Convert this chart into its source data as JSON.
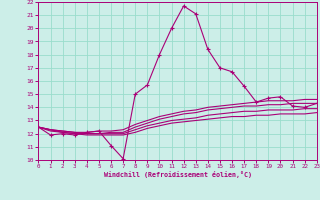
{
  "xlabel": "Windchill (Refroidissement éolien,°C)",
  "xlim": [
    0,
    23
  ],
  "ylim": [
    10,
    22
  ],
  "xticks": [
    0,
    1,
    2,
    3,
    4,
    5,
    6,
    7,
    8,
    9,
    10,
    11,
    12,
    13,
    14,
    15,
    16,
    17,
    18,
    19,
    20,
    21,
    22,
    23
  ],
  "yticks": [
    10,
    11,
    12,
    13,
    14,
    15,
    16,
    17,
    18,
    19,
    20,
    21,
    22
  ],
  "bg_color": "#cceee8",
  "grid_color": "#99ddcc",
  "line_color": "#aa0077",
  "line1_x": [
    0,
    1,
    2,
    3,
    4,
    5,
    6,
    7,
    8,
    9,
    10,
    11,
    12,
    13,
    14,
    15,
    16,
    17,
    18,
    19,
    20,
    21,
    22,
    23
  ],
  "line1_y": [
    12.5,
    11.9,
    12.0,
    11.9,
    12.1,
    12.2,
    11.1,
    10.1,
    15.0,
    15.7,
    18.0,
    20.0,
    21.7,
    21.1,
    18.4,
    17.0,
    16.7,
    15.6,
    14.4,
    14.7,
    14.8,
    14.1,
    14.0,
    14.3
  ],
  "line2_x": [
    0,
    1,
    2,
    3,
    4,
    5,
    6,
    7,
    8,
    9,
    10,
    11,
    12,
    13,
    14,
    15,
    16,
    17,
    18,
    19,
    20,
    21,
    22,
    23
  ],
  "line2_y": [
    12.5,
    12.3,
    12.2,
    12.1,
    12.1,
    12.2,
    12.2,
    12.3,
    12.7,
    13.0,
    13.3,
    13.5,
    13.7,
    13.8,
    14.0,
    14.1,
    14.2,
    14.3,
    14.4,
    14.5,
    14.5,
    14.5,
    14.6,
    14.6
  ],
  "line3_x": [
    0,
    1,
    2,
    3,
    4,
    5,
    6,
    7,
    8,
    9,
    10,
    11,
    12,
    13,
    14,
    15,
    16,
    17,
    18,
    19,
    20,
    21,
    22,
    23
  ],
  "line3_y": [
    12.5,
    12.3,
    12.2,
    12.1,
    12.0,
    12.0,
    12.1,
    12.1,
    12.5,
    12.8,
    13.1,
    13.3,
    13.5,
    13.6,
    13.8,
    13.9,
    14.0,
    14.1,
    14.1,
    14.2,
    14.2,
    14.3,
    14.3,
    14.3
  ],
  "line4_x": [
    0,
    1,
    2,
    3,
    4,
    5,
    6,
    7,
    8,
    9,
    10,
    11,
    12,
    13,
    14,
    15,
    16,
    17,
    18,
    19,
    20,
    21,
    22,
    23
  ],
  "line4_y": [
    12.5,
    12.3,
    12.1,
    12.0,
    12.0,
    12.0,
    12.0,
    12.0,
    12.3,
    12.6,
    12.8,
    13.0,
    13.1,
    13.2,
    13.4,
    13.5,
    13.6,
    13.7,
    13.7,
    13.8,
    13.8,
    13.8,
    13.9,
    13.9
  ],
  "line5_x": [
    0,
    1,
    2,
    3,
    4,
    5,
    6,
    7,
    8,
    9,
    10,
    11,
    12,
    13,
    14,
    15,
    16,
    17,
    18,
    19,
    20,
    21,
    22,
    23
  ],
  "line5_y": [
    12.5,
    12.2,
    12.1,
    12.0,
    11.9,
    11.9,
    11.9,
    11.9,
    12.1,
    12.4,
    12.6,
    12.8,
    12.9,
    13.0,
    13.1,
    13.2,
    13.3,
    13.3,
    13.4,
    13.4,
    13.5,
    13.5,
    13.5,
    13.6
  ]
}
